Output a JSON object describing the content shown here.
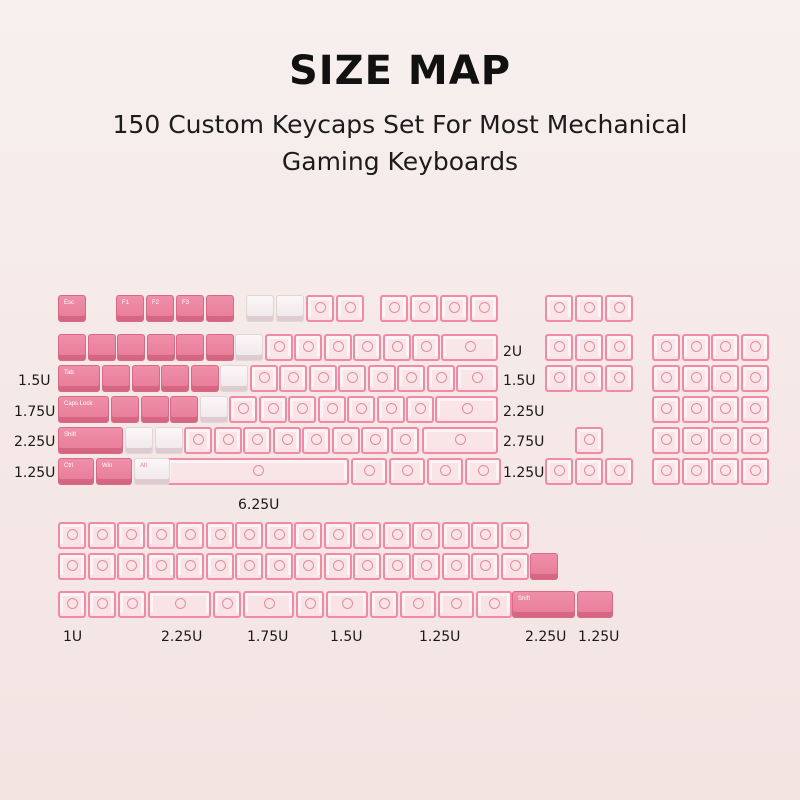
{
  "header": {
    "title": "SIZE MAP",
    "subtitle": "150 Custom Keycaps Set For Most Mechanical Gaming Keyboards"
  },
  "colors": {
    "solid_pink": "#e77b98",
    "white": "#f5eef0",
    "clear_pink": "#f08aa5",
    "background": "#f5e9e7"
  },
  "keyboard_legends": {
    "esc": "Esc",
    "f1": "F1",
    "f2": "F2",
    "f3": "F3",
    "tab": "Tab",
    "caps": "Caps Lock",
    "shift_left": "Shift",
    "ctrl": "Ctrl",
    "win": "Win",
    "alt": "Alt",
    "shift_right": "Shift"
  },
  "size_labels": {
    "tab_size": "1.5U",
    "caps_size": "1.75U",
    "lshift_size": "2.25U",
    "lctrl_size": "1.25U",
    "space_size": "6.25U",
    "backspace_size": "2U",
    "backslash_size": "1.5U",
    "enter_size": "2.25U",
    "rshift_size": "2.75U",
    "rctrl_size": "1.25U",
    "extra_1u": "1U",
    "extra_2_25u": "2.25U",
    "extra_1_75u": "1.75U",
    "extra_1_5u": "1.5U",
    "extra_1_25u": "1.25U",
    "extra_shift_2_25u": "2.25U",
    "extra_last_1_25u": "1.25U"
  }
}
